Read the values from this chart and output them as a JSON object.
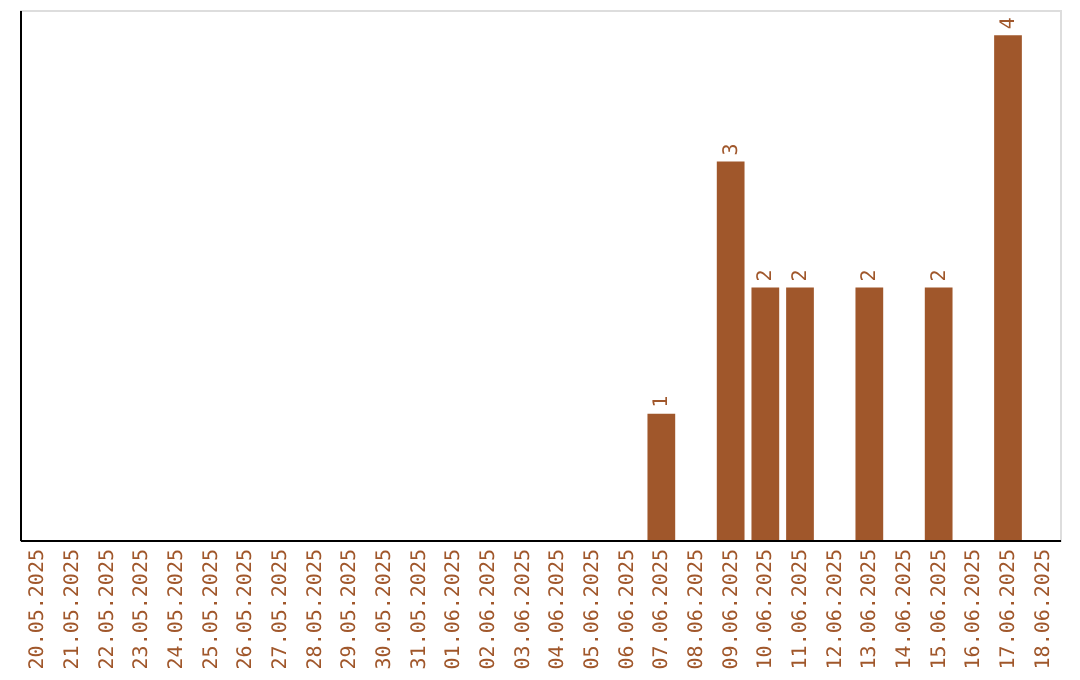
{
  "chart_data": {
    "type": "bar",
    "categories": [
      "20.05.2025",
      "21.05.2025",
      "22.05.2025",
      "23.05.2025",
      "24.05.2025",
      "25.05.2025",
      "26.05.2025",
      "27.05.2025",
      "28.05.2025",
      "29.05.2025",
      "30.05.2025",
      "31.05.2025",
      "01.06.2025",
      "02.06.2025",
      "03.06.2025",
      "04.06.2025",
      "05.06.2025",
      "06.06.2025",
      "07.06.2025",
      "08.06.2025",
      "09.06.2025",
      "10.06.2025",
      "11.06.2025",
      "12.06.2025",
      "13.06.2025",
      "14.06.2025",
      "15.06.2025",
      "16.06.2025",
      "17.06.2025",
      "18.06.2025"
    ],
    "series": [
      {
        "color": "#a0572b",
        "values": [
          null,
          null,
          null,
          null,
          null,
          null,
          null,
          null,
          null,
          null,
          null,
          null,
          null,
          null,
          null,
          null,
          null,
          null,
          1,
          null,
          3,
          2,
          2,
          null,
          2,
          null,
          2,
          null,
          4,
          null
        ]
      }
    ],
    "data_labels": true,
    "ylim": [
      0,
      4.2
    ],
    "tick_labels": "x",
    "grid": false
  }
}
